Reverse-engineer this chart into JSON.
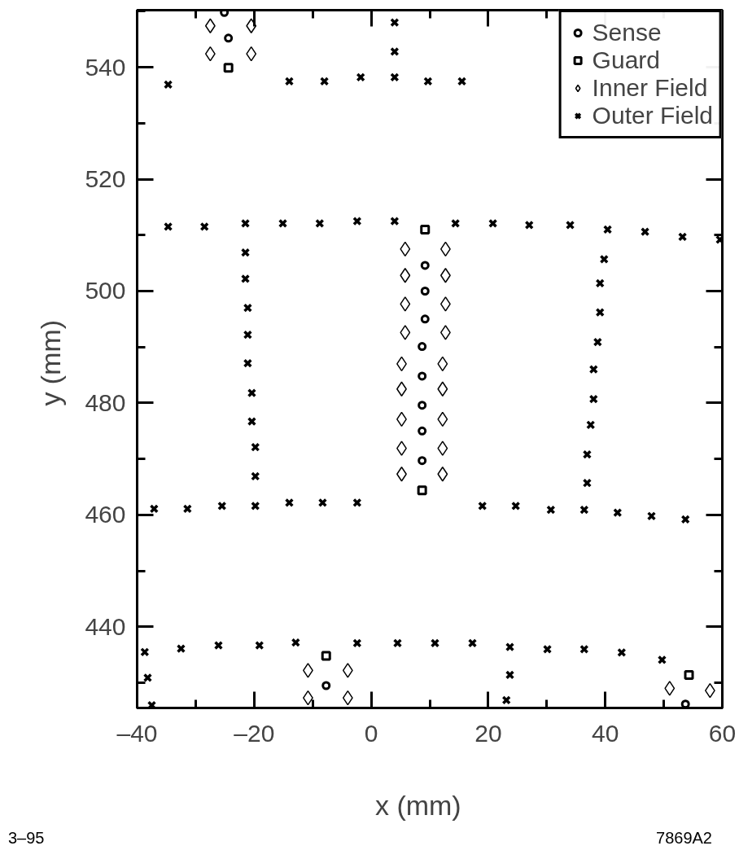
{
  "chart_data": {
    "type": "scatter",
    "xlabel": "x    (mm)",
    "ylabel": "y  (mm)",
    "xlim": [
      -40,
      60
    ],
    "ylim": [
      425.5,
      550.2
    ],
    "xticks": [
      {
        "value": -40,
        "label": "–40"
      },
      {
        "value": -20,
        "label": "–20"
      },
      0,
      20,
      40,
      60
    ],
    "yticks": [
      440,
      460,
      480,
      500,
      520,
      540
    ],
    "grid": false,
    "legend": "top right",
    "annotations": [
      "3–95",
      "7869A2"
    ],
    "series": [
      {
        "name": "Sense",
        "color": "#000000",
        "marker": "circle",
        "x": [
          -25.1,
          -24.4,
          9.2,
          9.2,
          9.2,
          8.7,
          8.7,
          8.7,
          8.7,
          8.7,
          -7.7,
          53.7
        ],
        "values": [
          549.8,
          545.2,
          504.6,
          500.0,
          495.0,
          490.1,
          484.8,
          479.6,
          475.0,
          469.7,
          429.5,
          426.2
        ]
      },
      {
        "name": "Guard",
        "color": "#000000",
        "marker": "square",
        "x": [
          -24.4,
          9.2,
          8.7,
          -7.7,
          54.3
        ],
        "values": [
          539.9,
          511.0,
          464.4,
          434.8,
          431.4
        ]
      },
      {
        "name": "Inner Field",
        "color": "#000000",
        "marker": "diamond",
        "x": [
          -27.5,
          -20.5,
          -27.5,
          -20.5,
          5.8,
          12.7,
          5.8,
          12.7,
          5.8,
          12.7,
          5.8,
          12.7,
          5.2,
          12.2,
          5.2,
          12.2,
          5.2,
          12.2,
          5.2,
          12.2,
          5.2,
          12.2,
          -10.8,
          -4.0,
          -10.8,
          -4.0,
          51.0,
          57.9
        ],
        "values": [
          547.4,
          547.4,
          542.4,
          542.4,
          507.5,
          507.5,
          502.8,
          502.8,
          497.7,
          497.7,
          492.6,
          492.6,
          487.0,
          487.0,
          482.5,
          482.5,
          477.1,
          477.1,
          471.9,
          471.9,
          467.3,
          467.3,
          432.2,
          432.2,
          427.3,
          427.3,
          429.0,
          428.6
        ]
      },
      {
        "name": "Outer Field",
        "color": "#000000",
        "marker": "cross",
        "x": [
          -34.7,
          -14.0,
          -8.0,
          -1.8,
          4.0,
          9.7,
          15.5,
          4.0,
          4.0,
          -34.7,
          -28.5,
          -21.5,
          -15.1,
          -8.8,
          -2.4,
          4.0,
          14.4,
          20.8,
          27.0,
          34.0,
          40.4,
          46.8,
          53.2,
          59.6,
          -21.5,
          -21.5,
          -21.1,
          -21.1,
          -21.1,
          -20.4,
          -20.4,
          -19.8,
          -19.8,
          39.8,
          39.1,
          39.1,
          38.7,
          38.0,
          38.0,
          37.5,
          36.9,
          36.9,
          -37.1,
          -31.4,
          -25.5,
          -19.8,
          -14.0,
          -8.3,
          -2.4,
          19.0,
          24.7,
          30.7,
          36.4,
          42.1,
          47.9,
          53.7,
          -38.7,
          -32.5,
          -26.1,
          -19.1,
          -12.9,
          -2.4,
          4.5,
          10.9,
          17.3,
          23.7,
          30.1,
          36.4,
          42.8,
          49.7,
          -38.2,
          -37.5,
          23.7,
          23.1
        ],
        "values": [
          536.9,
          537.5,
          537.5,
          538.2,
          538.2,
          537.5,
          537.5,
          542.8,
          548.0,
          511.5,
          511.5,
          512.1,
          512.1,
          512.1,
          512.5,
          512.5,
          512.1,
          512.1,
          511.8,
          511.8,
          511.0,
          510.6,
          509.7,
          509.2,
          506.9,
          502.2,
          497.0,
          492.2,
          487.1,
          481.8,
          476.7,
          472.1,
          466.9,
          505.7,
          501.4,
          496.2,
          490.9,
          486.0,
          480.7,
          476.1,
          470.8,
          465.7,
          461.1,
          461.1,
          461.6,
          461.6,
          462.2,
          462.2,
          462.2,
          461.6,
          461.6,
          460.9,
          460.9,
          460.4,
          459.8,
          459.2,
          435.5,
          436.1,
          436.7,
          436.7,
          437.2,
          437.1,
          437.1,
          437.1,
          437.1,
          436.4,
          436.0,
          436.0,
          435.4,
          434.1,
          430.9,
          426.0,
          431.4,
          426.9
        ]
      }
    ]
  }
}
